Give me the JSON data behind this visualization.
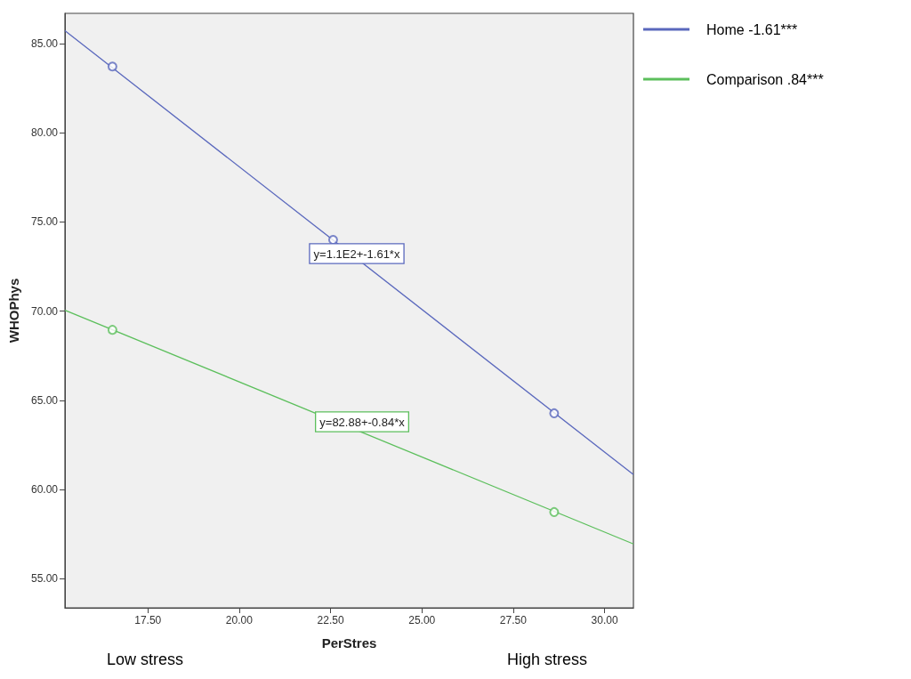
{
  "chart_data": {
    "type": "line",
    "xlabel": "PerStres",
    "ylabel": "WHOPhys",
    "xlim": [
      15.23,
      30.79
    ],
    "ylim": [
      53.36,
      86.7
    ],
    "xticks": [
      {
        "value": 17.5,
        "label": "17.50"
      },
      {
        "value": 20,
        "label": "20.00"
      },
      {
        "value": 22.5,
        "label": "22.50"
      },
      {
        "value": 25,
        "label": "25.00"
      },
      {
        "value": 27.5,
        "label": "27.50"
      },
      {
        "value": 30,
        "label": "30.00"
      }
    ],
    "yticks": [
      {
        "value": 55,
        "label": "55.00"
      },
      {
        "value": 60,
        "label": "60.00"
      },
      {
        "value": 65,
        "label": "65.00"
      },
      {
        "value": 70,
        "label": "70.00"
      },
      {
        "value": 75,
        "label": "75.00"
      },
      {
        "value": 80,
        "label": "80.00"
      },
      {
        "value": 85,
        "label": "85.00"
      }
    ],
    "series": [
      {
        "name": "Home -1.61***",
        "color": "#5a68bd",
        "marker": "none",
        "x": [
          15.23,
          30.79
        ],
        "values": [
          85.73,
          60.83
        ]
      },
      {
        "name": "Comparison .84***",
        "color": "#5cbf5c",
        "marker": "none",
        "x": [
          15.23,
          30.79
        ],
        "values": [
          70.05,
          56.94
        ]
      },
      {
        "type": "scatter",
        "color": "#5a68bd",
        "marker": "circle",
        "x": [
          16.53,
          22.57,
          28.62
        ],
        "values": [
          83.72,
          74.0,
          64.27
        ]
      },
      {
        "type": "scatter",
        "color": "#5cbf5c",
        "marker": "circle",
        "x": [
          16.53,
          28.62
        ],
        "values": [
          68.95,
          58.73
        ]
      }
    ],
    "annotations": [
      "y=1.1E2+-1.61*x",
      "y=82.88+-0.84*x",
      "Low stress",
      "High stress"
    ],
    "grid": false,
    "legend": "top right"
  }
}
